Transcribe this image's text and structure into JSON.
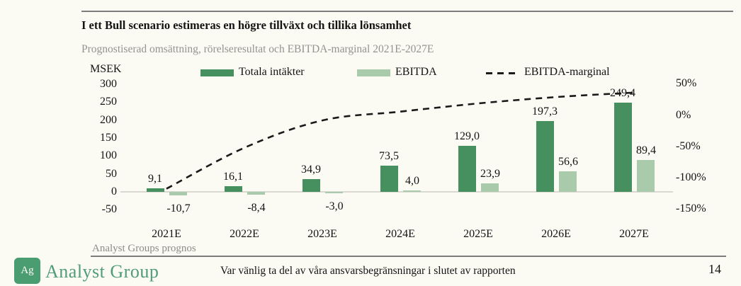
{
  "header": {
    "title": "I ett Bull scenario estimeras en högre tillväxt och tillika lönsamhet",
    "subtitle": "Prognostiserad omsättning, rörelseresultat och EBITDA-marginal 2021E-2027E"
  },
  "chart_data": {
    "type": "bar",
    "title": "Prognostiserad omsättning, rörelseresultat och EBITDA-marginal 2021E-2027E",
    "categories": [
      "2021E",
      "2022E",
      "2023E",
      "2024E",
      "2025E",
      "2026E",
      "2027E"
    ],
    "series": [
      {
        "name": "Totala intäkter",
        "type": "bar",
        "axis": "left",
        "color": "#46905f",
        "values": [
          9.1,
          16.1,
          34.9,
          73.5,
          129.0,
          197.3,
          249.4
        ],
        "labels": [
          "9,1",
          "16,1",
          "34,9",
          "73,5",
          "129,0",
          "197,3",
          "249,4"
        ]
      },
      {
        "name": "EBITDA",
        "type": "bar",
        "axis": "left",
        "color": "#a9caab",
        "values": [
          -10.7,
          -8.4,
          -3.0,
          4.0,
          23.9,
          56.6,
          89.4
        ],
        "labels": [
          "-10,7",
          "-8,4",
          "-3,0",
          "4,0",
          "23,9",
          "56,6",
          "89,4"
        ]
      },
      {
        "name": "EBITDA-marginal",
        "type": "line",
        "line_style": "dashed",
        "axis": "right",
        "color": "#1a1a1a",
        "values": [
          -117.6,
          -52.2,
          -8.6,
          5.4,
          18.5,
          28.7,
          35.8
        ]
      }
    ],
    "left_axis": {
      "title": "MSEK",
      "ticks": [
        300,
        250,
        200,
        150,
        100,
        50,
        0,
        -50
      ],
      "tick_labels": [
        "300",
        "250",
        "200",
        "150",
        "100",
        "50",
        "0",
        "-50"
      ],
      "range": [
        -50,
        300
      ]
    },
    "right_axis": {
      "ticks": [
        50,
        0,
        -50,
        -100,
        -150
      ],
      "tick_labels": [
        "50%",
        "0%",
        "-50%",
        "-100%",
        "-150%"
      ],
      "range": [
        -150,
        50
      ]
    },
    "grid": false,
    "legend_position": "top"
  },
  "colors": {
    "revenue_bar": "#46905f",
    "ebitda_bar": "#a9caab",
    "margin_line": "#1a1a1a",
    "brand_green": "#4a9c71",
    "background": "#fbfaf3"
  },
  "footnote": "Analyst Groups prognos",
  "footer": {
    "logo_monogram": "Ag",
    "logo_text": "Analyst Group",
    "disclaimer": "Var vänlig ta del av våra ansvarsbegränsningar i slutet av rapporten",
    "page_number": "14"
  }
}
